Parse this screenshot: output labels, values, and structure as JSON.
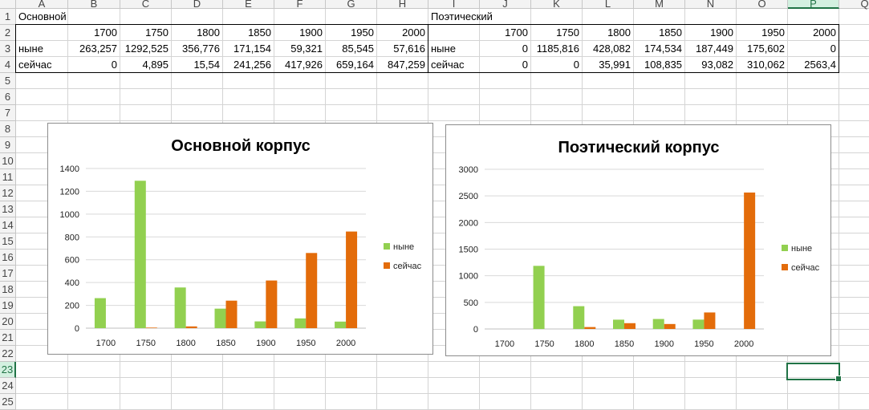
{
  "columns": [
    "A",
    "B",
    "C",
    "D",
    "E",
    "F",
    "G",
    "H",
    "I",
    "J",
    "K",
    "L",
    "M",
    "N",
    "O",
    "P",
    "Q"
  ],
  "rows": [
    "1",
    "2",
    "3",
    "4",
    "5",
    "6",
    "7",
    "8",
    "9",
    "10",
    "11",
    "12",
    "13",
    "14",
    "15",
    "16",
    "17",
    "18",
    "19",
    "20",
    "21",
    "22",
    "23",
    "24",
    "25"
  ],
  "selected_column": "P",
  "selected_row": "23",
  "table_main": {
    "title": "Основной",
    "years": [
      "1700",
      "1750",
      "1800",
      "1850",
      "1900",
      "1950",
      "2000"
    ],
    "row1_label": "ныне",
    "row1": [
      "263,257",
      "1292,525",
      "356,776",
      "171,154",
      "59,321",
      "85,545",
      "57,616"
    ],
    "row2_label": "сейчас",
    "row2": [
      "0",
      "4,895",
      "15,54",
      "241,256",
      "417,926",
      "659,164",
      "847,259"
    ]
  },
  "table_poetic": {
    "title": "Поэтический",
    "years": [
      "1700",
      "1750",
      "1800",
      "1850",
      "1900",
      "1950",
      "2000"
    ],
    "row1_label": "ныне",
    "row1": [
      "0",
      "1185,816",
      "428,082",
      "174,534",
      "187,449",
      "175,602",
      "0"
    ],
    "row2_label": "сейчас",
    "row2": [
      "0",
      "0",
      "35,991",
      "108,835",
      "93,082",
      "310,062",
      "2563,4"
    ]
  },
  "chart_data": [
    {
      "type": "bar",
      "title": "Основной корпус",
      "categories": [
        "1700",
        "1750",
        "1800",
        "1850",
        "1900",
        "1950",
        "2000"
      ],
      "series": [
        {
          "name": "ныне",
          "color": "#92d050",
          "values": [
            263.257,
            1292.525,
            356.776,
            171.154,
            59.321,
            85.545,
            57.616
          ]
        },
        {
          "name": "сейчас",
          "color": "#e36c0a",
          "values": [
            0,
            4.895,
            15.54,
            241.256,
            417.926,
            659.164,
            847.259
          ]
        }
      ],
      "ylim": [
        0,
        1400
      ],
      "yticks": [
        0,
        200,
        400,
        600,
        800,
        1000,
        1200,
        1400
      ],
      "grid": true,
      "legend": "right"
    },
    {
      "type": "bar",
      "title": "Поэтический корпус",
      "categories": [
        "1700",
        "1750",
        "1800",
        "1850",
        "1900",
        "1950",
        "2000"
      ],
      "series": [
        {
          "name": "ныне",
          "color": "#92d050",
          "values": [
            0,
            1185.816,
            428.082,
            174.534,
            187.449,
            175.602,
            0
          ]
        },
        {
          "name": "сейчас",
          "color": "#e36c0a",
          "values": [
            0,
            0,
            35.991,
            108.835,
            93.082,
            310.062,
            2563.4
          ]
        }
      ],
      "ylim": [
        0,
        3000
      ],
      "yticks": [
        0,
        500,
        1000,
        1500,
        2000,
        2500,
        3000
      ],
      "grid": true,
      "legend": "right"
    }
  ]
}
